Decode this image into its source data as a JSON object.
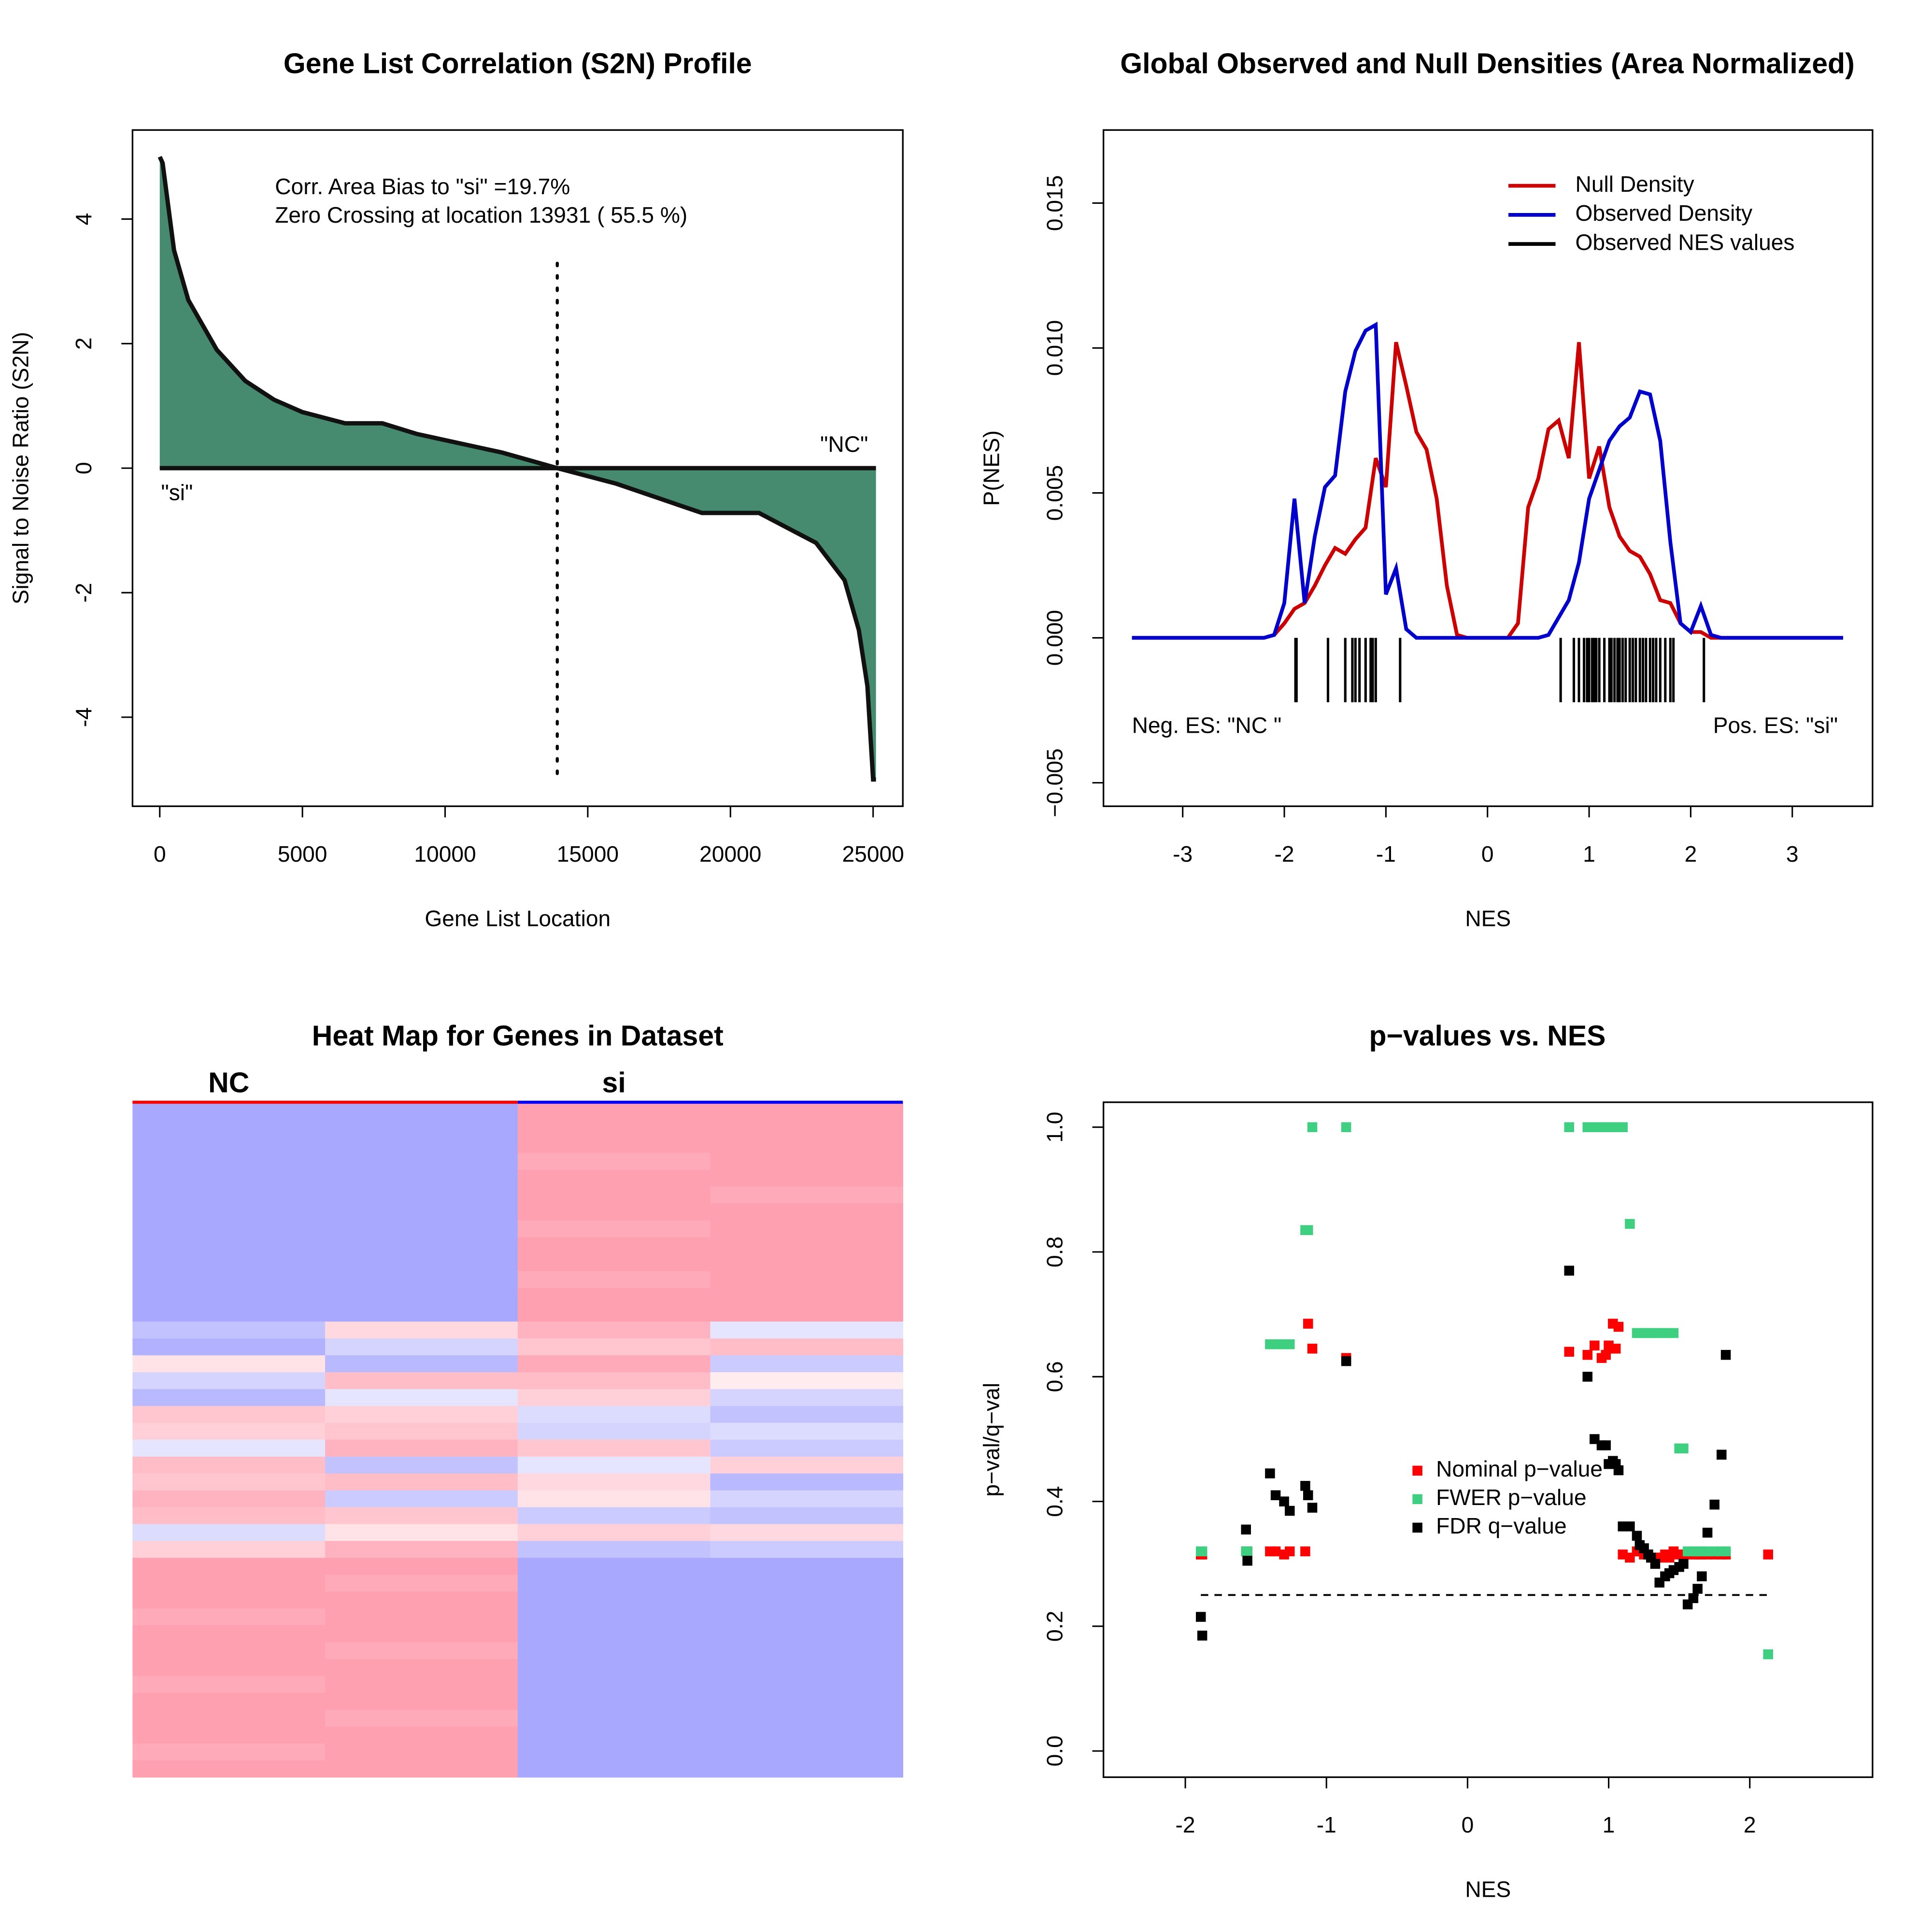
{
  "chart_data": [
    {
      "type": "area",
      "title": "Gene List Correlation (S2N) Profile",
      "xlabel": "Gene List Location",
      "ylabel": "Signal to Noise Ratio (S2N)",
      "x": [
        0,
        100,
        500,
        1000,
        2000,
        3000,
        4000,
        5000,
        6500,
        7800,
        9000,
        10000,
        12000,
        13931,
        16000,
        19000,
        21000,
        23000,
        24000,
        24500,
        24800,
        25000,
        25100
      ],
      "values": [
        5,
        4.9,
        3.5,
        2.7,
        1.9,
        1.4,
        1.1,
        0.9,
        0.72,
        0.72,
        0.55,
        0.45,
        0.25,
        0,
        -0.25,
        -0.72,
        -0.72,
        -1.2,
        -1.8,
        -2.6,
        -3.5,
        -5,
        -5
      ],
      "color": "#468b6f",
      "zero_crossing": 13931,
      "annotations": [
        "Corr. Area Bias to \"si\" =19.7%",
        "Zero Crossing at location  13931  ( 55.5  %)",
        "\"si\"",
        "\"NC\""
      ],
      "xlim": [
        -955,
        26042
      ],
      "xticks": [
        0,
        5000,
        10000,
        15000,
        20000,
        25000
      ],
      "ylim": [
        -5.43,
        5.43
      ],
      "yticks": [
        -4,
        -2,
        0,
        2,
        4
      ]
    },
    {
      "type": "line",
      "title": "Global Observed and Null Densities (Area Normalized)",
      "xlabel": "NES",
      "ylabel": "P(NES)",
      "x": [
        -3.5,
        -2.2,
        -2.1,
        -2.0,
        -1.9,
        -1.8,
        -1.7,
        -1.6,
        -1.5,
        -1.4,
        -1.3,
        -1.2,
        -1.1,
        -1.0,
        -0.9,
        -0.8,
        -0.7,
        -0.6,
        -0.5,
        -0.4,
        -0.3,
        -0.2,
        -0.1,
        0,
        0.1,
        0.2,
        0.3,
        0.4,
        0.5,
        0.6,
        0.7,
        0.8,
        0.9,
        1.0,
        1.1,
        1.2,
        1.3,
        1.4,
        1.5,
        1.6,
        1.7,
        1.8,
        1.9,
        2.0,
        2.1,
        2.2,
        2.3,
        3.5
      ],
      "series": [
        {
          "name": "Null Density",
          "color": "#cc0000",
          "values": [
            0,
            0,
            0.0001,
            0.0005,
            0.001,
            0.0012,
            0.0018,
            0.0025,
            0.0031,
            0.0029,
            0.0034,
            0.0038,
            0.0062,
            0.0052,
            0.0102,
            0.0087,
            0.0071,
            0.0065,
            0.0048,
            0.0018,
            0.0001,
            0,
            0,
            0,
            0,
            0,
            0.0005,
            0.0045,
            0.0055,
            0.0072,
            0.0075,
            0.0062,
            0.0102,
            0.0055,
            0.0066,
            0.0045,
            0.0035,
            0.003,
            0.0028,
            0.0022,
            0.0013,
            0.0012,
            0.0005,
            0.0002,
            0.0002,
            0,
            0,
            0
          ]
        },
        {
          "name": "Observed Density",
          "color": "#0000cc",
          "values": [
            0,
            0,
            0.0001,
            0.0012,
            0.0048,
            0.0012,
            0.0035,
            0.0052,
            0.0056,
            0.0085,
            0.0099,
            0.0106,
            0.0108,
            0.0015,
            0.0024,
            0.0003,
            0,
            0,
            0,
            0,
            0,
            0,
            0,
            0,
            0,
            0,
            0,
            0,
            0,
            0.0001,
            0.0007,
            0.0013,
            0.0026,
            0.0048,
            0.0058,
            0.0068,
            0.0073,
            0.0076,
            0.0085,
            0.0084,
            0.0068,
            0.0033,
            0.0005,
            0.0002,
            0.0011,
            0.0001,
            0,
            0
          ]
        }
      ],
      "rug": {
        "name": "Observed NES values",
        "color": "#000000",
        "values": [
          -1.89,
          -1.88,
          -1.57,
          -1.4,
          -1.33,
          -1.3,
          -1.26,
          -1.2,
          -1.15,
          -1.13,
          -1.1,
          -0.86,
          0.72,
          0.85,
          0.9,
          0.95,
          0.98,
          1.0,
          1.03,
          1.05,
          1.07,
          1.1,
          1.15,
          1.2,
          1.22,
          1.25,
          1.28,
          1.3,
          1.33,
          1.36,
          1.4,
          1.43,
          1.46,
          1.5,
          1.53,
          1.56,
          1.6,
          1.63,
          1.66,
          1.7,
          1.75,
          1.8,
          1.83,
          2.13
        ]
      },
      "annotations": [
        "Neg. ES: \"NC \"",
        "Pos. ES: \"si\""
      ],
      "legend": "topright",
      "xlim": [
        -3.78,
        3.79
      ],
      "xticks": [
        -3,
        -2,
        -1,
        0,
        1,
        2,
        3
      ],
      "ylim": [
        -0.00581,
        0.01752
      ],
      "yticks": [
        {
          "value": -0.005,
          "label": "−0.005"
        },
        {
          "value": 0,
          "label": "0.000"
        },
        {
          "value": 0.005,
          "label": "0.005"
        },
        {
          "value": 0.01,
          "label": "0.010"
        },
        {
          "value": 0.015,
          "label": "0.015"
        }
      ]
    },
    {
      "type": "heatmap",
      "title": "Heat Map for Genes in Dataset",
      "columns": [
        "NC",
        "si"
      ],
      "group_colors": [
        "#ff0000",
        "#0000ff"
      ],
      "zlim": [
        -1,
        1
      ],
      "colors": [
        "#a8a8ff",
        "#ffffff",
        "#ffa0b0"
      ],
      "values": [
        [
          -1,
          -1,
          1,
          1
        ],
        [
          -1,
          -1,
          1,
          1
        ],
        [
          -1,
          -1,
          1,
          1
        ],
        [
          -1,
          -1,
          0.9,
          1
        ],
        [
          -1,
          -1,
          1,
          1
        ],
        [
          -1,
          -1,
          1,
          0.9
        ],
        [
          -1,
          -1,
          1,
          1
        ],
        [
          -1,
          -1,
          0.9,
          1
        ],
        [
          -1,
          -1,
          1,
          1
        ],
        [
          -1,
          -1,
          1,
          1
        ],
        [
          -1,
          -1,
          0.9,
          1
        ],
        [
          -1,
          -1,
          1,
          1
        ],
        [
          -1,
          -1,
          1,
          1
        ],
        [
          -0.7,
          0.4,
          0.8,
          -0.3
        ],
        [
          -0.9,
          -0.5,
          0.6,
          0.7
        ],
        [
          0.3,
          -0.8,
          0.9,
          -0.6
        ],
        [
          -0.5,
          0.7,
          0.7,
          0.2
        ],
        [
          -0.8,
          -0.3,
          0.5,
          -0.5
        ],
        [
          0.6,
          0.5,
          -0.4,
          -0.7
        ],
        [
          0.5,
          0.6,
          -0.5,
          -0.4
        ],
        [
          -0.3,
          0.8,
          0.6,
          -0.6
        ],
        [
          0.7,
          -0.7,
          -0.3,
          0.5
        ],
        [
          0.6,
          0.7,
          0.4,
          -0.8
        ],
        [
          0.8,
          -0.6,
          0.3,
          -0.5
        ],
        [
          0.7,
          0.6,
          -0.6,
          -0.7
        ],
        [
          -0.4,
          0.3,
          0.5,
          0.4
        ],
        [
          0.5,
          0.8,
          -0.7,
          -0.6
        ],
        [
          1,
          1,
          -1,
          -1
        ],
        [
          1,
          0.9,
          -1,
          -1
        ],
        [
          1,
          1,
          -1,
          -1
        ],
        [
          0.9,
          1,
          -1,
          -1
        ],
        [
          1,
          1,
          -1,
          -1
        ],
        [
          1,
          0.9,
          -1,
          -1
        ],
        [
          1,
          1,
          -1,
          -1
        ],
        [
          0.9,
          1,
          -1,
          -1
        ],
        [
          1,
          1,
          -1,
          -1
        ],
        [
          1,
          0.9,
          -1,
          -1
        ],
        [
          1,
          1,
          -1,
          -1
        ],
        [
          0.9,
          1,
          -1,
          -1
        ],
        [
          1,
          1,
          -1,
          -1
        ]
      ]
    },
    {
      "type": "scatter",
      "title": "p−values vs. NES",
      "xlabel": "NES",
      "ylabel": "p−val/q−val",
      "x": [
        -1.89,
        -1.88,
        -1.57,
        -1.56,
        -1.4,
        -1.36,
        -1.3,
        -1.26,
        -1.15,
        -1.13,
        -1.1,
        -0.86,
        0.72,
        0.85,
        0.9,
        0.95,
        0.98,
        1.0,
        1.03,
        1.05,
        1.07,
        1.1,
        1.15,
        1.2,
        1.22,
        1.25,
        1.28,
        1.3,
        1.33,
        1.36,
        1.4,
        1.43,
        1.46,
        1.5,
        1.53,
        1.56,
        1.6,
        1.63,
        1.66,
        1.7,
        1.75,
        1.8,
        1.83,
        2.13
      ],
      "series": [
        {
          "name": "Nominal p−value",
          "color": "#ff0000",
          "values": [
            0.315,
            0.315,
            0.32,
            0.32,
            0.32,
            0.32,
            0.315,
            0.32,
            0.32,
            0.685,
            0.645,
            0.63,
            0.64,
            0.635,
            0.65,
            0.63,
            0.635,
            0.65,
            0.685,
            0.645,
            0.68,
            0.315,
            0.31,
            0.32,
            0.32,
            0.315,
            0.315,
            0.31,
            0.31,
            0.31,
            0.315,
            0.31,
            0.32,
            0.315,
            0.315,
            0.315,
            0.315,
            0.315,
            0.315,
            0.315,
            0.315,
            0.315,
            0.315,
            0.315
          ]
        },
        {
          "name": "FWER p−value",
          "color": "#3fcf80",
          "values": [
            0.32,
            0.32,
            0.32,
            0.32,
            0.652,
            0.652,
            0.652,
            0.652,
            0.835,
            0.835,
            1.0,
            1.0,
            1.0,
            1.0,
            1.0,
            1.0,
            1.0,
            1.0,
            1.0,
            1.0,
            1.0,
            1.0,
            0.845,
            0.67,
            0.67,
            0.67,
            0.67,
            0.67,
            0.67,
            0.67,
            0.67,
            0.67,
            0.67,
            0.485,
            0.485,
            0.32,
            0.32,
            0.32,
            0.32,
            0.32,
            0.32,
            0.32,
            0.32,
            0.155
          ]
        },
        {
          "name": "FDR q−value",
          "color": "#000000",
          "values": [
            0.215,
            0.185,
            0.355,
            0.305,
            0.445,
            0.41,
            0.4,
            0.385,
            0.425,
            0.41,
            0.39,
            0.625,
            0.77,
            0.6,
            0.5,
            0.49,
            0.49,
            0.46,
            0.465,
            0.46,
            0.45,
            0.36,
            0.36,
            0.345,
            0.33,
            0.325,
            0.315,
            0.31,
            0.3,
            0.27,
            0.28,
            0.285,
            0.29,
            0.295,
            0.3,
            0.235,
            0.245,
            0.26,
            0.28,
            0.35,
            0.395,
            0.475,
            0.635,
            null
          ]
        }
      ],
      "threshold": 0.25,
      "legend": "center",
      "xlim": [
        -2.58,
        2.87
      ],
      "xticks": [
        -2,
        -1,
        0,
        1,
        2
      ],
      "ylim": [
        -0.042,
        1.04
      ],
      "yticks": [
        {
          "value": 0,
          "label": "0.0"
        },
        {
          "value": 0.2,
          "label": "0.2"
        },
        {
          "value": 0.4,
          "label": "0.4"
        },
        {
          "value": 0.6,
          "label": "0.6"
        },
        {
          "value": 0.8,
          "label": "0.8"
        },
        {
          "value": 1.0,
          "label": "1.0"
        }
      ]
    }
  ]
}
